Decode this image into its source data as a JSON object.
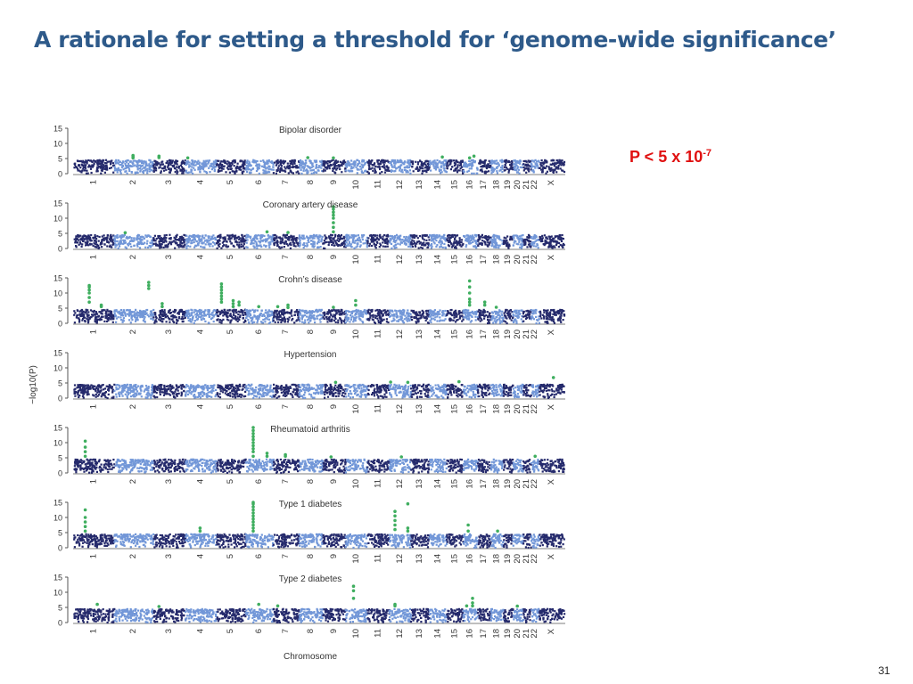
{
  "slide": {
    "title": "A rationale for setting a threshold for ‘genome-wide significance’",
    "threshold_prefix": "P < 5 x 10",
    "threshold_exponent": "-7",
    "page_number": "31"
  },
  "colors": {
    "title": "#2e5a8a",
    "threshold_text": "#e01010",
    "dark_chromosome": "#252a6c",
    "light_chromosome": "#7297d8",
    "significant_hit": "#3fae5f"
  },
  "chart_data": {
    "type": "scatter",
    "xlabel": "Chromosome",
    "ylabel": "−log10(P)",
    "ylim": [
      0,
      15
    ],
    "yticks": [
      0,
      5,
      10,
      15
    ],
    "chromosomes": [
      "1",
      "2",
      "3",
      "4",
      "5",
      "6",
      "7",
      "8",
      "9",
      "10",
      "11",
      "12",
      "13",
      "14",
      "15",
      "16",
      "17",
      "18",
      "19",
      "20",
      "21",
      "22",
      "X"
    ],
    "baseline_range": [
      0,
      4.5
    ],
    "panels": [
      {
        "name": "Bipolar disorder",
        "hits": [
          {
            "chr": "2",
            "pos": 0.5,
            "values": [
              5.2,
              5.6,
              6
            ]
          },
          {
            "chr": "3",
            "pos": 0.2,
            "values": [
              5.3,
              5.8
            ]
          },
          {
            "chr": "4",
            "pos": 0.1,
            "values": [
              5.2
            ]
          },
          {
            "chr": "8",
            "pos": 0.4,
            "values": [
              5.3
            ]
          },
          {
            "chr": "9",
            "pos": 0.5,
            "values": [
              5.2
            ]
          },
          {
            "chr": "14",
            "pos": 0.8,
            "values": [
              5.5
            ]
          },
          {
            "chr": "16",
            "pos": 0.8,
            "values": [
              5.8
            ]
          },
          {
            "chr": "16",
            "pos": 0.5,
            "values": [
              5.2
            ]
          }
        ]
      },
      {
        "name": "Coronary artery disease",
        "hits": [
          {
            "chr": "9",
            "pos": 0.5,
            "values": [
              5.5,
              7,
              8.5,
              10,
              11,
              12,
              13,
              13.8
            ]
          },
          {
            "chr": "2",
            "pos": 0.3,
            "values": [
              5.2
            ]
          },
          {
            "chr": "6",
            "pos": 0.8,
            "values": [
              5.5
            ]
          },
          {
            "chr": "7",
            "pos": 0.6,
            "values": [
              5.3
            ]
          }
        ]
      },
      {
        "name": "Crohn’s disease",
        "hits": [
          {
            "chr": "1",
            "pos": 0.4,
            "values": [
              7,
              8.5,
              10,
              11,
              12,
              12.5
            ]
          },
          {
            "chr": "1",
            "pos": 0.7,
            "values": [
              5.5,
              6
            ]
          },
          {
            "chr": "2",
            "pos": 0.9,
            "values": [
              11.5,
              12.5,
              13.5
            ]
          },
          {
            "chr": "3",
            "pos": 0.3,
            "values": [
              5.5,
              6.5
            ]
          },
          {
            "chr": "5",
            "pos": 0.2,
            "values": [
              7,
              8,
              9,
              10,
              11,
              12,
              13
            ]
          },
          {
            "chr": "5",
            "pos": 0.6,
            "values": [
              5.5,
              6.5,
              7.5
            ]
          },
          {
            "chr": "5",
            "pos": 0.8,
            "values": [
              6,
              7
            ]
          },
          {
            "chr": "6",
            "pos": 0.5,
            "values": [
              5.5
            ]
          },
          {
            "chr": "7",
            "pos": 0.2,
            "values": [
              5.5
            ]
          },
          {
            "chr": "7",
            "pos": 0.6,
            "values": [
              5.2,
              6
            ]
          },
          {
            "chr": "9",
            "pos": 0.5,
            "values": [
              5.3
            ]
          },
          {
            "chr": "10",
            "pos": 0.5,
            "values": [
              6,
              7.5
            ]
          },
          {
            "chr": "16",
            "pos": 0.5,
            "values": [
              6,
              7,
              8,
              10,
              12,
              14
            ]
          },
          {
            "chr": "17",
            "pos": 0.6,
            "values": [
              6,
              7
            ]
          },
          {
            "chr": "18",
            "pos": 0.5,
            "values": [
              5.3
            ]
          }
        ]
      },
      {
        "name": "Hypertension",
        "hits": [
          {
            "chr": "9",
            "pos": 0.6,
            "values": [
              5.2
            ]
          },
          {
            "chr": "12",
            "pos": 0.1,
            "values": [
              5.3
            ]
          },
          {
            "chr": "12",
            "pos": 0.9,
            "values": [
              5.2
            ]
          },
          {
            "chr": "15",
            "pos": 0.8,
            "values": [
              5.4
            ]
          },
          {
            "chr": "X",
            "pos": 0.6,
            "values": [
              6.8
            ]
          }
        ]
      },
      {
        "name": "Rheumatoid arthritis",
        "hits": [
          {
            "chr": "1",
            "pos": 0.3,
            "values": [
              5.5,
              7,
              8.5,
              10.5
            ]
          },
          {
            "chr": "6",
            "pos": 0.3,
            "values": [
              5.5,
              7,
              8,
              9,
              10,
              11,
              12,
              13,
              14,
              15
            ]
          },
          {
            "chr": "6",
            "pos": 0.8,
            "values": [
              5.5,
              6.5
            ]
          },
          {
            "chr": "7",
            "pos": 0.5,
            "values": [
              5.5,
              6
            ]
          },
          {
            "chr": "9",
            "pos": 0.4,
            "values": [
              5.3
            ]
          },
          {
            "chr": "12",
            "pos": 0.6,
            "values": [
              5.3
            ]
          },
          {
            "chr": "22",
            "pos": 0.6,
            "values": [
              5.5
            ]
          }
        ]
      },
      {
        "name": "Type 1 diabetes",
        "hits": [
          {
            "chr": "1",
            "pos": 0.3,
            "values": [
              5.5,
              7,
              8.5,
              10,
              12.5
            ]
          },
          {
            "chr": "4",
            "pos": 0.5,
            "values": [
              5.5,
              6.5
            ]
          },
          {
            "chr": "6",
            "pos": 0.3,
            "values": [
              5.5,
              6.5,
              7.5,
              8.5,
              9.5,
              10.5,
              11.5,
              12.5,
              13.5,
              14.5,
              15
            ]
          },
          {
            "chr": "12",
            "pos": 0.3,
            "values": [
              6,
              7.5,
              9,
              10.5,
              12
            ]
          },
          {
            "chr": "12",
            "pos": 0.9,
            "values": [
              5.5,
              6.5,
              14.5
            ]
          },
          {
            "chr": "16",
            "pos": 0.4,
            "values": [
              5.5,
              7.5
            ]
          },
          {
            "chr": "18",
            "pos": 0.6,
            "values": [
              5.5
            ]
          }
        ]
      },
      {
        "name": "Type 2 diabetes",
        "hits": [
          {
            "chr": "1",
            "pos": 0.6,
            "values": [
              6
            ]
          },
          {
            "chr": "3",
            "pos": 0.2,
            "values": [
              5.3
            ]
          },
          {
            "chr": "6",
            "pos": 0.5,
            "values": [
              6
            ]
          },
          {
            "chr": "7",
            "pos": 0.2,
            "values": [
              5.5
            ]
          },
          {
            "chr": "10",
            "pos": 0.4,
            "values": [
              8,
              10.5,
              12
            ]
          },
          {
            "chr": "12",
            "pos": 0.3,
            "values": [
              5.5,
              6
            ]
          },
          {
            "chr": "16",
            "pos": 0.3,
            "values": [
              5.5
            ]
          },
          {
            "chr": "16",
            "pos": 0.7,
            "values": [
              5.5,
              6.5,
              8
            ]
          },
          {
            "chr": "20",
            "pos": 0.5,
            "values": [
              5.4
            ]
          }
        ]
      }
    ]
  }
}
